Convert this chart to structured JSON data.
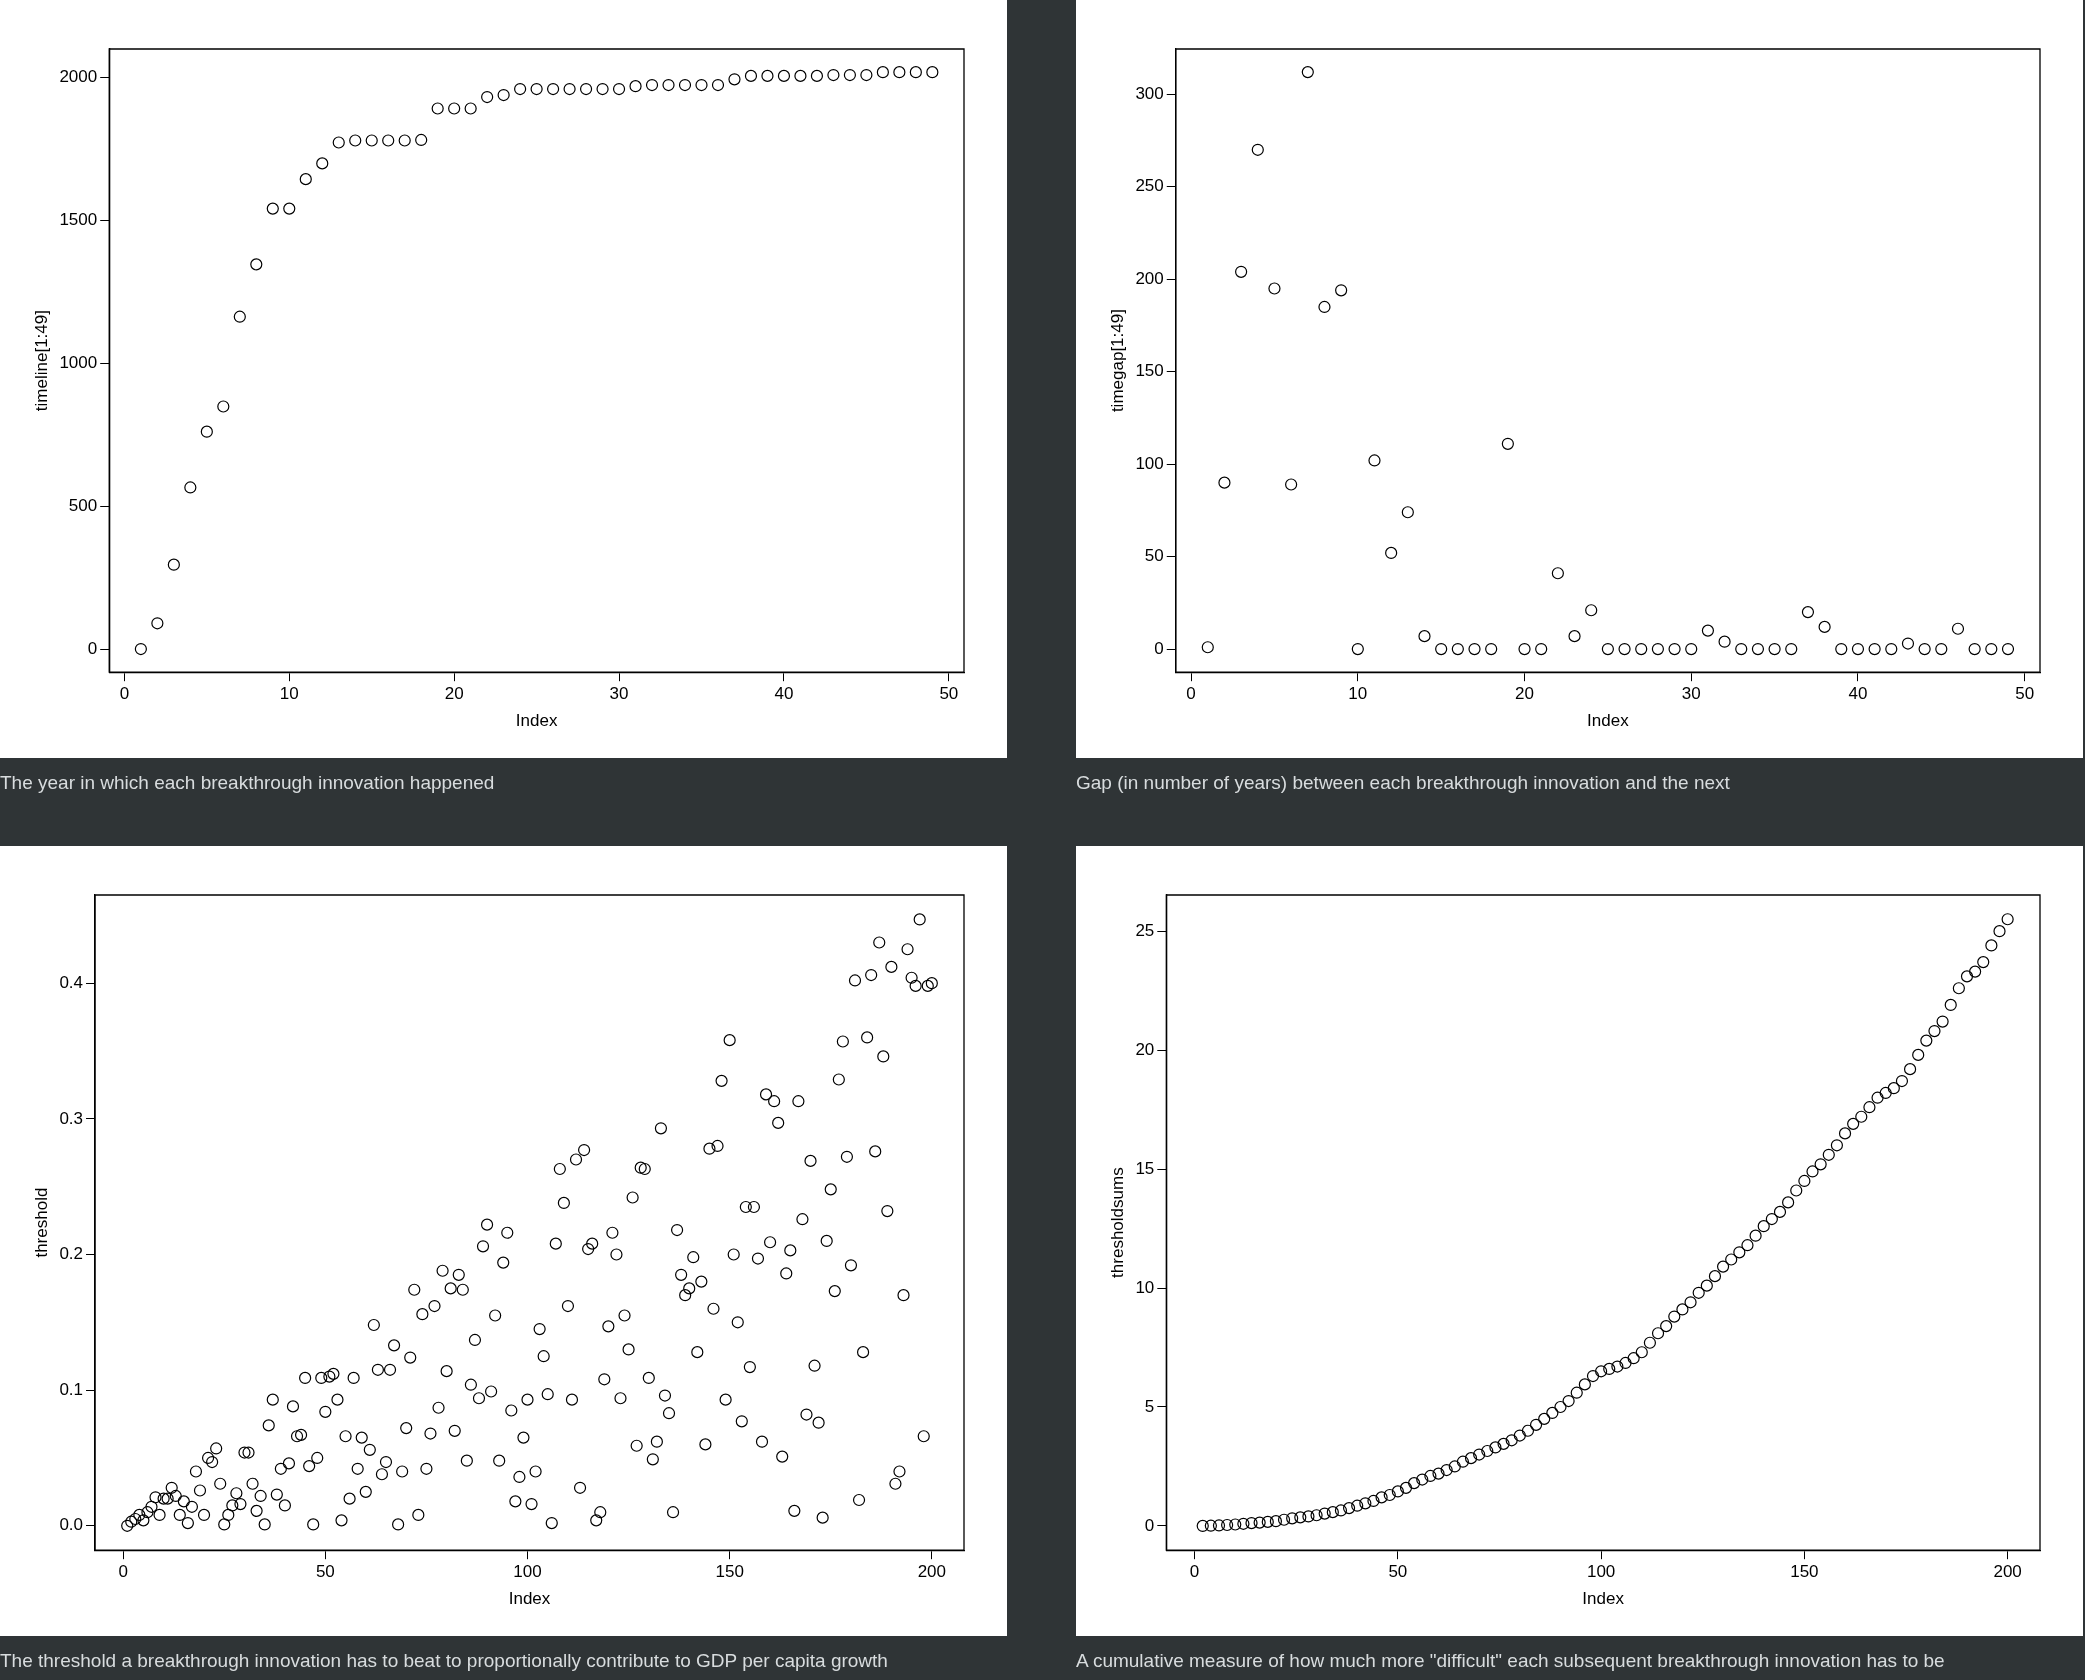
{
  "chart_data": [
    {
      "type": "scatter",
      "xlabel": "Index",
      "ylabel": "timeline[1:49]",
      "marker": "circle",
      "grid": false,
      "legend": false,
      "x": [
        1,
        2,
        3,
        4,
        5,
        6,
        7,
        8,
        9,
        10,
        11,
        12,
        13,
        14,
        15,
        16,
        17,
        18,
        19,
        20,
        21,
        22,
        23,
        24,
        25,
        26,
        27,
        28,
        29,
        30,
        31,
        32,
        33,
        34,
        35,
        36,
        37,
        38,
        39,
        40,
        41,
        42,
        43,
        44,
        45,
        46,
        47,
        48,
        49
      ],
      "values": [
        0,
        90,
        295,
        565,
        760,
        848,
        1162,
        1345,
        1540,
        1540,
        1643,
        1698,
        1771,
        1778,
        1778,
        1778,
        1778,
        1780,
        1890,
        1890,
        1890,
        1930,
        1937,
        1958,
        1958,
        1958,
        1958,
        1958,
        1958,
        1958,
        1968,
        1972,
        1972,
        1972,
        1972,
        1972,
        1992,
        2004,
        2004,
        2004,
        2004,
        2004,
        2007,
        2007,
        2007,
        2017,
        2017,
        2017,
        2017
      ],
      "xlim": [
        -0.92,
        50.92
      ],
      "xticks": [
        0,
        10,
        20,
        30,
        40,
        50
      ],
      "ylim": [
        -81,
        2098
      ],
      "yticks": [
        0,
        500,
        1000,
        1500,
        2000
      ],
      "annotations": [
        "The year in which each breakthrough innovation happened"
      ]
    },
    {
      "type": "scatter",
      "xlabel": "Index",
      "ylabel": "timegap[1:49]",
      "marker": "circle",
      "grid": false,
      "legend": false,
      "x": [
        1,
        2,
        3,
        4,
        5,
        6,
        7,
        8,
        9,
        10,
        11,
        12,
        13,
        14,
        15,
        16,
        17,
        18,
        19,
        20,
        21,
        22,
        23,
        24,
        25,
        26,
        27,
        28,
        29,
        30,
        31,
        32,
        33,
        34,
        35,
        36,
        37,
        38,
        39,
        40,
        41,
        42,
        43,
        44,
        45,
        46,
        47,
        48,
        49
      ],
      "values": [
        1,
        90,
        204,
        270,
        195,
        89,
        312,
        185,
        194,
        0,
        102,
        52,
        74,
        7,
        0,
        0,
        0,
        0,
        111,
        0,
        0,
        41,
        7,
        21,
        0,
        0,
        0,
        0,
        0,
        0,
        10,
        4,
        0,
        0,
        0,
        0,
        20,
        12,
        0,
        0,
        0,
        0,
        3,
        0,
        0,
        11,
        0,
        0,
        0
      ],
      "xlim": [
        -0.92,
        50.92
      ],
      "xticks": [
        0,
        10,
        20,
        30,
        40,
        50
      ],
      "ylim": [
        -12.5,
        324.5
      ],
      "yticks": [
        0,
        50,
        100,
        150,
        200,
        250,
        300
      ],
      "annotations": [
        "Gap (in number of years) between each breakthrough innovation and the next"
      ]
    },
    {
      "type": "scatter",
      "xlabel": "Index",
      "ylabel": "threshold",
      "marker": "circle",
      "grid": false,
      "legend": false,
      "x": [
        1,
        2,
        3,
        4,
        5,
        6,
        7,
        8,
        9,
        10,
        11,
        12,
        13,
        14,
        15,
        16,
        17,
        18,
        19,
        20,
        21,
        22,
        23,
        24,
        25,
        26,
        27,
        28,
        29,
        30,
        31,
        32,
        33,
        34,
        35,
        36,
        37,
        38,
        39,
        40,
        41,
        42,
        43,
        44,
        45,
        46,
        47,
        48,
        49,
        50,
        51,
        52,
        53,
        54,
        55,
        56,
        57,
        58,
        59,
        60,
        61,
        62,
        63,
        64,
        65,
        66,
        67,
        68,
        69,
        70,
        71,
        72,
        73,
        74,
        75,
        76,
        77,
        78,
        79,
        80,
        81,
        82,
        83,
        84,
        85,
        86,
        87,
        88,
        89,
        90,
        91,
        92,
        93,
        94,
        95,
        96,
        97,
        98,
        99,
        100,
        101,
        102,
        103,
        104,
        105,
        106,
        107,
        108,
        109,
        110,
        111,
        112,
        113,
        114,
        115,
        116,
        117,
        118,
        119,
        120,
        121,
        122,
        123,
        124,
        125,
        126,
        127,
        128,
        129,
        130,
        131,
        132,
        133,
        134,
        135,
        136,
        137,
        138,
        139,
        140,
        141,
        142,
        143,
        144,
        145,
        146,
        147,
        148,
        149,
        150,
        151,
        152,
        153,
        154,
        155,
        156,
        157,
        158,
        159,
        160,
        161,
        162,
        163,
        164,
        165,
        166,
        167,
        168,
        169,
        170,
        171,
        172,
        173,
        174,
        175,
        176,
        177,
        178,
        179,
        180,
        181,
        182,
        183,
        184,
        185,
        186,
        187,
        188,
        189,
        190,
        191,
        192,
        193,
        194,
        195,
        196,
        197,
        198,
        199,
        200
      ],
      "values": [
        0.0,
        0.003,
        0.005,
        0.008,
        0.004,
        0.01,
        0.014,
        0.021,
        0.008,
        0.02,
        0.02,
        0.028,
        0.022,
        0.008,
        0.018,
        0.002,
        0.014,
        0.04,
        0.026,
        0.008,
        0.05,
        0.047,
        0.057,
        0.031,
        0.001,
        0.008,
        0.015,
        0.024,
        0.016,
        0.054,
        0.054,
        0.031,
        0.011,
        0.022,
        0.001,
        0.074,
        0.093,
        0.023,
        0.042,
        0.015,
        0.046,
        0.088,
        0.066,
        0.067,
        0.109,
        0.044,
        0.001,
        0.05,
        0.109,
        0.084,
        0.11,
        0.112,
        0.093,
        0.004,
        0.066,
        0.02,
        0.109,
        0.042,
        0.065,
        0.025,
        0.056,
        0.148,
        0.115,
        0.038,
        0.047,
        0.115,
        0.133,
        0.001,
        0.04,
        0.072,
        0.124,
        0.174,
        0.008,
        0.156,
        0.042,
        0.068,
        0.162,
        0.087,
        0.188,
        0.114,
        0.175,
        0.07,
        0.185,
        0.174,
        0.048,
        0.104,
        0.137,
        0.094,
        0.206,
        0.222,
        0.099,
        0.155,
        0.048,
        0.194,
        0.216,
        0.085,
        0.018,
        0.036,
        0.065,
        0.093,
        0.016,
        0.04,
        0.145,
        0.125,
        0.097,
        0.002,
        0.208,
        0.263,
        0.238,
        0.162,
        0.093,
        0.27,
        0.028,
        0.277,
        0.204,
        0.208,
        0.004,
        0.01,
        0.108,
        0.147,
        0.216,
        0.2,
        0.094,
        0.155,
        0.13,
        0.242,
        0.059,
        0.264,
        0.263,
        0.109,
        0.049,
        0.062,
        0.293,
        0.096,
        0.083,
        0.01,
        0.218,
        0.185,
        0.17,
        0.175,
        0.198,
        0.128,
        0.18,
        0.06,
        0.278,
        0.16,
        0.28,
        0.328,
        0.093,
        0.358,
        0.2,
        0.15,
        0.077,
        0.235,
        0.117,
        0.235,
        0.197,
        0.062,
        0.318,
        0.209,
        0.313,
        0.297,
        0.051,
        0.186,
        0.203,
        0.011,
        0.313,
        0.226,
        0.082,
        0.269,
        0.118,
        0.076,
        0.006,
        0.21,
        0.248,
        0.173,
        0.329,
        0.357,
        0.272,
        0.192,
        0.402,
        0.019,
        0.128,
        0.36,
        0.406,
        0.276,
        0.43,
        0.346,
        0.232,
        0.412,
        0.031,
        0.04,
        0.17,
        0.425,
        0.404,
        0.398,
        0.447,
        0.066,
        0.398,
        0.4
      ],
      "xlim": [
        -6.96,
        207.96
      ],
      "xticks": [
        0,
        50,
        100,
        150,
        200
      ],
      "ylim": [
        -0.018,
        0.465
      ],
      "yticks": [
        {
          "value": 0,
          "label": "0.0"
        },
        {
          "value": 0.1,
          "label": "0.1"
        },
        {
          "value": 0.2,
          "label": "0.2"
        },
        {
          "value": 0.3,
          "label": "0.3"
        },
        {
          "value": 0.4,
          "label": "0.4"
        }
      ],
      "annotations": [
        "The threshold a breakthrough innovation has to beat to proportionally contribute to GDP per capita growth"
      ]
    },
    {
      "type": "scatter",
      "xlabel": "Index",
      "ylabel": "thresholdsums",
      "marker": "circle",
      "grid": false,
      "legend": false,
      "x": [
        2,
        4,
        6,
        8,
        10,
        12,
        14,
        16,
        18,
        20,
        22,
        24,
        26,
        28,
        30,
        32,
        34,
        36,
        38,
        40,
        42,
        44,
        46,
        48,
        50,
        52,
        54,
        56,
        58,
        60,
        62,
        64,
        66,
        68,
        70,
        72,
        74,
        76,
        78,
        80,
        82,
        84,
        86,
        88,
        90,
        92,
        94,
        96,
        98,
        100,
        102,
        104,
        106,
        108,
        110,
        112,
        114,
        116,
        118,
        120,
        122,
        124,
        126,
        128,
        130,
        132,
        134,
        136,
        138,
        140,
        142,
        144,
        146,
        148,
        150,
        152,
        154,
        156,
        158,
        160,
        162,
        164,
        166,
        168,
        170,
        172,
        174,
        176,
        178,
        180,
        182,
        184,
        186,
        188,
        190,
        192,
        194,
        196,
        198,
        200
      ],
      "values": [
        0.0,
        0.01,
        0.02,
        0.04,
        0.06,
        0.09,
        0.12,
        0.14,
        0.17,
        0.2,
        0.26,
        0.32,
        0.36,
        0.4,
        0.45,
        0.52,
        0.58,
        0.65,
        0.75,
        0.85,
        0.95,
        1.05,
        1.2,
        1.3,
        1.45,
        1.6,
        1.8,
        1.95,
        2.1,
        2.2,
        2.35,
        2.5,
        2.7,
        2.85,
        3.0,
        3.15,
        3.3,
        3.45,
        3.6,
        3.8,
        4.0,
        4.25,
        4.5,
        4.75,
        5.0,
        5.25,
        5.6,
        5.95,
        6.3,
        6.5,
        6.6,
        6.7,
        6.85,
        7.05,
        7.3,
        7.7,
        8.1,
        8.4,
        8.8,
        9.1,
        9.4,
        9.8,
        10.1,
        10.5,
        10.9,
        11.2,
        11.5,
        11.8,
        12.2,
        12.6,
        12.9,
        13.2,
        13.6,
        14.1,
        14.5,
        14.9,
        15.2,
        15.6,
        16.0,
        16.5,
        16.9,
        17.2,
        17.6,
        18.0,
        18.2,
        18.4,
        18.7,
        19.2,
        19.8,
        20.4,
        20.8,
        21.2,
        21.9,
        22.6,
        23.1,
        23.3,
        23.7,
        24.4,
        25.0,
        25.5
      ],
      "xlim": [
        -6.96,
        207.96
      ],
      "xticks": [
        0,
        50,
        100,
        150,
        200
      ],
      "ylim": [
        -1.02,
        26.52
      ],
      "yticks": [
        0,
        5,
        10,
        15,
        20,
        25
      ],
      "annotations": [
        "A cumulative measure of how much more \"difficult\" each subsequent breakthrough innovation has to be"
      ]
    }
  ]
}
